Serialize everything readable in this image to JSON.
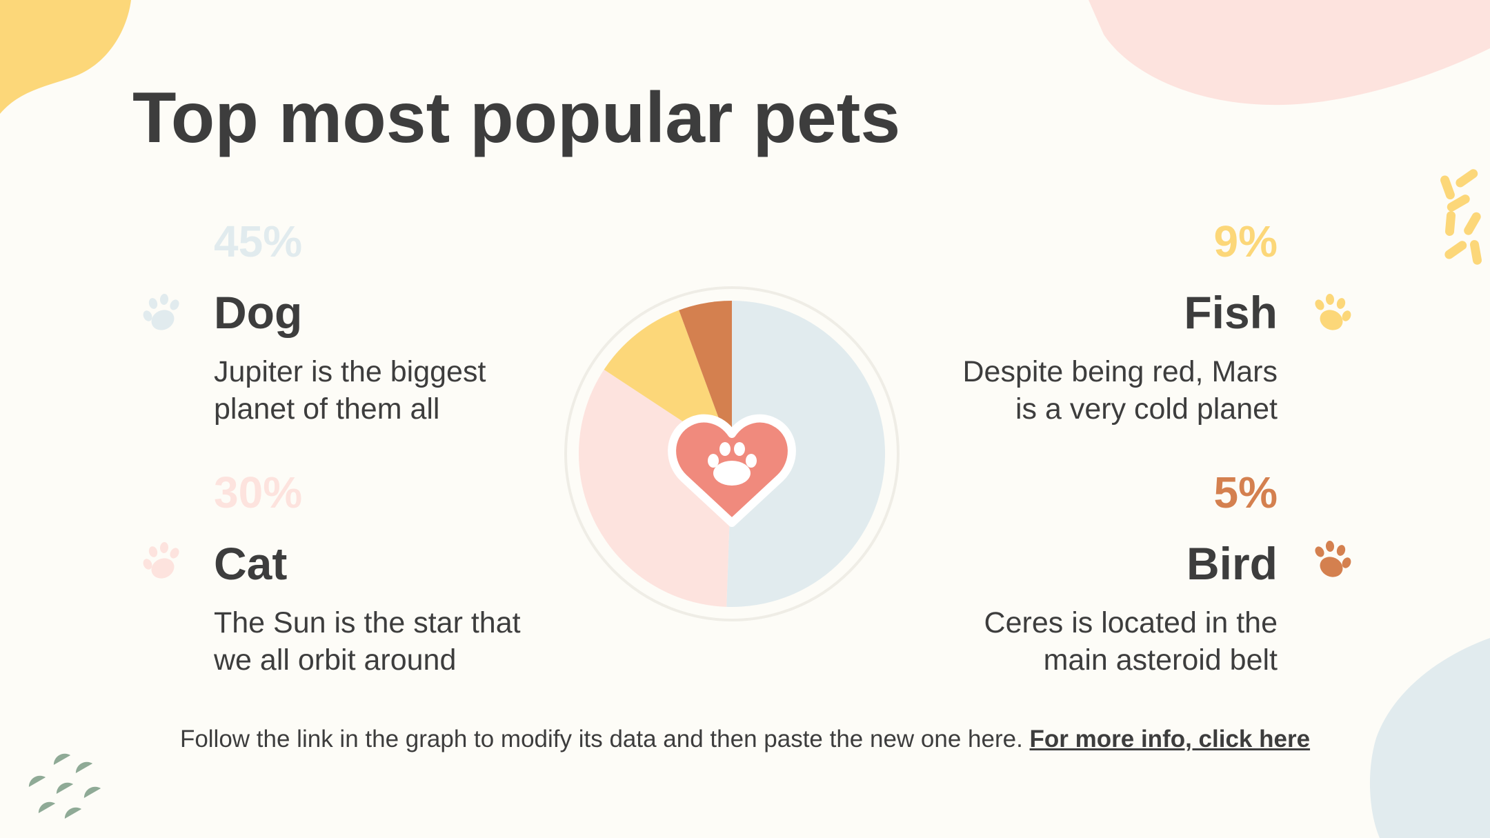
{
  "title": "Top most popular pets",
  "items": [
    {
      "id": "dog",
      "percent": "45%",
      "name": "Dog",
      "desc_line1": "Jupiter is the biggest",
      "desc_line2": "planet of them all",
      "color": "#e1ebee"
    },
    {
      "id": "cat",
      "percent": "30%",
      "name": "Cat",
      "desc_line1": "The Sun is the star that",
      "desc_line2": "we all orbit around",
      "color": "#fde3de"
    },
    {
      "id": "fish",
      "percent": "9%",
      "name": "Fish",
      "desc_line1": "Despite being red, Mars",
      "desc_line2": "is a very cold planet",
      "color": "#fcd779"
    },
    {
      "id": "bird",
      "percent": "5%",
      "name": "Bird",
      "desc_line1": "Ceres is located in the",
      "desc_line2": "main asteroid belt",
      "color": "#d4804f"
    }
  ],
  "footer": {
    "text": "Follow the link in the graph to modify its data and then paste the new one here.",
    "link": "For more info, click here"
  },
  "chart_data": {
    "type": "pie",
    "categories": [
      "Dog",
      "Cat",
      "Fish",
      "Bird"
    ],
    "values": [
      45,
      30,
      9,
      5
    ],
    "colors": [
      "#e1ebee",
      "#fde3de",
      "#fcd779",
      "#d4804f"
    ],
    "center_icon": "heart-paw-icon"
  },
  "colors": {
    "background": "#fdfcf7",
    "text": "#3d3d3d",
    "heart": "#f08a7d"
  }
}
